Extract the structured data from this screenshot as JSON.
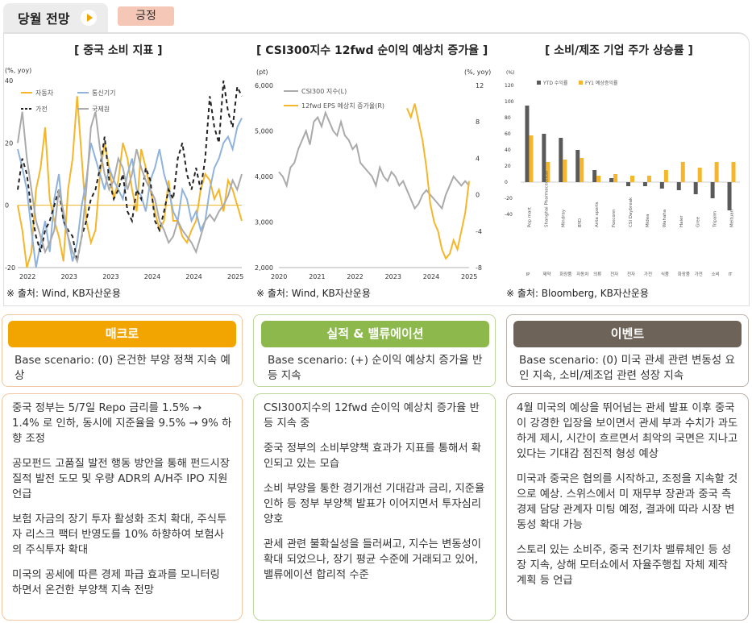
{
  "header": {
    "tab_label": "당월 전망",
    "status_badge": "긍정"
  },
  "panels": [
    {
      "title": "[ 중국 소비 지표 ]",
      "source": "※ 출처: Wind, KB자산운용"
    },
    {
      "title": "[ CSI300지수 12fwd 순이익 예상치 증가율 ]",
      "source": "※ 출처: Wind, KB자산운용"
    },
    {
      "title": "[ 소비/제조 기업 주가 상승률 ]",
      "source": "※ 출처: Bloomberg, KB자산운용"
    }
  ],
  "chart_data": [
    {
      "type": "line",
      "title": "중국 소비 지표",
      "unit_label": "(%, yoy)",
      "ylim": [
        -20,
        40
      ],
      "yticks": [
        "40",
        "20",
        "0",
        "-20"
      ],
      "xticks": [
        "2022",
        "2023",
        "2023",
        "2024",
        "2024",
        "2025"
      ],
      "series": [
        {
          "name": "자동차",
          "color": "#f5b62b",
          "dash": "",
          "values": [
            0,
            -8,
            -20,
            -15,
            5,
            12,
            25,
            2,
            -5,
            -10,
            -18,
            5,
            15,
            35,
            15,
            -5,
            -12,
            -8,
            10,
            20,
            12,
            2,
            8,
            20,
            15,
            5,
            -2,
            18,
            12,
            5,
            -2,
            -8,
            -5,
            8,
            -5,
            -5,
            -10,
            -12,
            -8,
            -5,
            5,
            10,
            8,
            2,
            5,
            -2,
            8,
            5,
            0,
            -5
          ]
        },
        {
          "name": "통신기기",
          "color": "#8fb3dd",
          "dash": "",
          "values": [
            18,
            12,
            5,
            -8,
            -20,
            -12,
            -5,
            -15,
            2,
            10,
            -5,
            -10,
            -18,
            -12,
            0,
            8,
            20,
            15,
            10,
            5,
            12,
            8,
            5,
            2,
            10,
            15,
            5,
            3,
            -2,
            8,
            12,
            18,
            10,
            5,
            -2,
            -5,
            5,
            2,
            -5,
            -2,
            -8,
            -5,
            5,
            12,
            15,
            20,
            22,
            18,
            25,
            28
          ]
        },
        {
          "name": "가전",
          "color": "#222",
          "dash": "5,4",
          "values": [
            5,
            15,
            10,
            -2,
            -10,
            -15,
            -8,
            -5,
            0,
            5,
            -5,
            -8,
            -10,
            -18,
            -10,
            -5,
            2,
            5,
            12,
            22,
            8,
            2,
            5,
            10,
            -2,
            -5,
            5,
            2,
            12,
            8,
            -5,
            -8,
            -2,
            5,
            2,
            15,
            20,
            10,
            5,
            12,
            5,
            15,
            35,
            25,
            20,
            40,
            30,
            25,
            38,
            35
          ]
        },
        {
          "name": "국제원",
          "color": "#aaa",
          "dash": "",
          "values": [
            20,
            30,
            15,
            5,
            -5,
            -10,
            -15,
            -12,
            -8,
            5,
            -2,
            -10,
            -15,
            -18,
            -10,
            5,
            25,
            30,
            18,
            10,
            5,
            8,
            15,
            12,
            5,
            10,
            18,
            12,
            8,
            5,
            2,
            -5,
            -8,
            -12,
            -10,
            -5,
            -8,
            -10,
            -12,
            -15,
            -10,
            -5,
            -3,
            -5,
            -2,
            0,
            3,
            8,
            5,
            10
          ]
        }
      ]
    },
    {
      "type": "line",
      "title": "CSI300지수 12fwd 순이익 예상치 증가율",
      "left_unit": "(pt)",
      "right_unit": "(%, yoy)",
      "ylim_left": [
        2000,
        6000
      ],
      "ylim_right": [
        -8,
        12
      ],
      "yticks_left": [
        "6,000",
        "5,000",
        "4,000",
        "3,000",
        "2,000"
      ],
      "yticks_right": [
        "12",
        "8",
        "4",
        "0",
        "-4",
        "-8"
      ],
      "xticks": [
        "2020",
        "2021",
        "2022",
        "2023",
        "2024",
        "2025"
      ],
      "series": [
        {
          "name": "CSI300 지수(L)",
          "color": "#aaa",
          "axis": "left",
          "values": [
            4100,
            4000,
            3800,
            4200,
            4300,
            4600,
            4800,
            5000,
            4700,
            5200,
            5300,
            5100,
            5400,
            5200,
            5000,
            4900,
            5200,
            4900,
            4800,
            4600,
            4700,
            4300,
            4200,
            4100,
            4000,
            3800,
            4200,
            4000,
            3900,
            4100,
            4000,
            3800,
            3900,
            3700,
            3500,
            3300,
            3400,
            3600,
            3700,
            3600,
            3500,
            3400,
            3300,
            3600,
            3800,
            4000,
            3900,
            3800,
            3900,
            3800
          ]
        },
        {
          "name": "12fwd EPS 예상치 증가율(R)",
          "color": "#f5b62b",
          "axis": "right",
          "values": [
            null,
            null,
            null,
            null,
            null,
            null,
            null,
            null,
            null,
            null,
            null,
            null,
            null,
            null,
            null,
            null,
            null,
            null,
            null,
            null,
            null,
            null,
            null,
            null,
            null,
            null,
            null,
            null,
            null,
            null,
            null,
            null,
            null,
            9.5,
            8.5,
            10,
            8,
            6,
            3,
            -1,
            -3,
            -4,
            -6,
            -7,
            -6.5,
            -5,
            -6,
            -4,
            -2,
            1.5
          ]
        }
      ]
    },
    {
      "type": "bar",
      "title": "소비/제조 기업 주가 상승률",
      "unit_label": "(%)",
      "ylim": [
        -40,
        120
      ],
      "yticks": [
        "120",
        "100",
        "80",
        "60",
        "40",
        "20",
        "0",
        "-20",
        "-40"
      ],
      "legend": [
        "YTD 수익률",
        "FY1 예상증익률"
      ],
      "categories": [
        "Pop mart",
        "Shanghai Pharmaceutical",
        "Mindray",
        "BYD",
        "Anta sports",
        "Foxconn",
        "CSI Daybreak",
        "Midea",
        "Wahaha",
        "Haier",
        "Gree",
        "Tripalm",
        "Meituan"
      ],
      "sector_labels": [
        "IP",
        "제약",
        "화장품",
        "자동차",
        "의류",
        "전자",
        "전자",
        "가전",
        "식품",
        "화장품",
        "가전",
        "소비",
        "IT"
      ],
      "series": [
        {
          "name": "YTD 수익률",
          "color": "#5a5a5a",
          "values": [
            95,
            60,
            55,
            40,
            15,
            5,
            -5,
            -5,
            -8,
            -10,
            -15,
            -20,
            -35
          ]
        },
        {
          "name": "FY1 예상증익률",
          "color": "#f5b62b",
          "values": [
            58,
            25,
            28,
            30,
            8,
            10,
            8,
            8,
            15,
            25,
            18,
            25,
            25
          ]
        }
      ]
    }
  ],
  "columns": [
    {
      "header": "매크로",
      "color": "#f2a500",
      "border": "#f4c8a0",
      "scenario": "Base scenario: (0) 온건한 부양 정책 지속 예상",
      "paragraphs": [
        "중국 정부는 5/7일 Repo 금리를 1.5% → 1.4% 로 인하, 동시에 지준율을 9.5% → 9% 하향 조정",
        "공모펀드 고품질 발전 행동 방안을 통해 펀드시장 질적 발전 도모 및 우량 ADR의 A/H주 IPO 지원 언급",
        "보험 자금의 장기 투자 활성화 조치 확대, 주식투자 리스크 팩터 반영도를 10% 하향하여 보험사의 주식투자 확대",
        "미국의 공세에 따른 경제 파급 효과를 모니터링 하면서 온건한 부양책 지속 전망"
      ]
    },
    {
      "header": "실적 & 밸류에이션",
      "color": "#8db84c",
      "border": "#bcd89a",
      "scenario": "Base scenario: (+)  순이익 예상치 증가율 반등 지속",
      "paragraphs": [
        "CSI300지수의 12fwd 순이익 예상치 증가율 반등 지속 중",
        "중국 정부의 소비부양책 효과가 지표를 통해서 확인되고 있는 모습",
        "소비 부양을 통한 경기개선 기대감과 금리, 지준율 인하 등 정부 부양책 발표가 이어지면서 투자심리 양호",
        "관세 관련 불확실성을 들러써고, 지수는 변동성이 확대 되었으나, 장기 평균 수준에 거래되고 있어, 밸류에이션 합리적 수준"
      ]
    },
    {
      "header": "이벤트",
      "color": "#6e6358",
      "border": "#b9b2ab",
      "scenario": "Base scenario: (0) 미국 관세 관련 변동성 요인 지속, 소비/제조업 관련 성장 지속",
      "paragraphs": [
        "4월 미국의 예상을 뛰어넘는 관세 발표 이후 중국이 강경한 입장을 보이면서 관세 부과 수치가 과도하게 제시, 시간이 흐르면서 최악의 국면은 지나고 있다는 기대감 점진적 형성 예상",
        "미국과 중국은 협의를 시작하고, 조정을 지속할 것으로 예상. 스위스에서 미 재무부 장관과 중국 측 경제 담당 관계자 미팅 예정, 결과에 따라 시장 변동성 확대 가능",
        "스토리 있는 소비주, 중국 전기차 밸류체인 등 성장 지속, 상해 모터쇼에서 자율주행칩 자체 제작 계획 등 언급"
      ]
    }
  ]
}
